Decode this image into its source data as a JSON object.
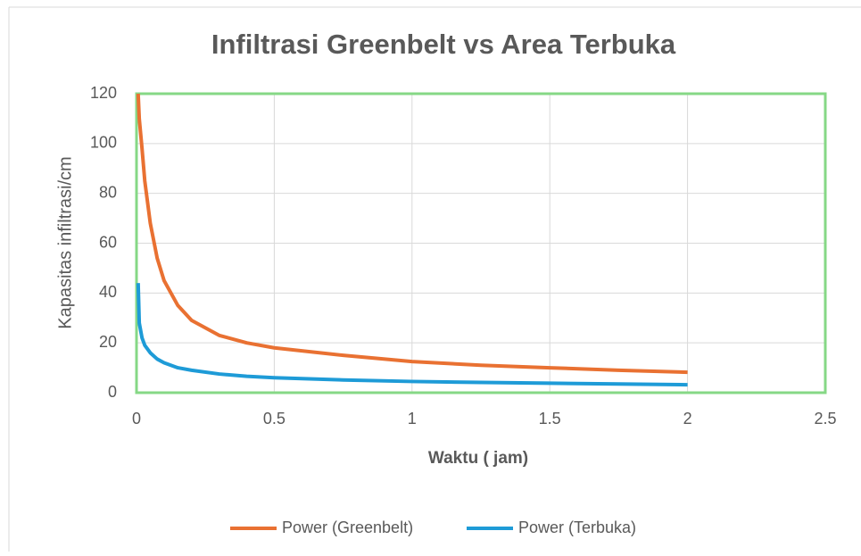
{
  "chart_data": {
    "type": "line",
    "title": "Infiltrasi Greenbelt vs Area Terbuka",
    "xlabel": "Waktu ( jam)",
    "ylabel": "Kapasitas infiltrasi/cm",
    "x": [
      0.006,
      0.01,
      0.02,
      0.03,
      0.05,
      0.075,
      0.1,
      0.15,
      0.2,
      0.3,
      0.4,
      0.5,
      0.75,
      1,
      1.25,
      1.5,
      1.75,
      2
    ],
    "series": [
      {
        "name": "Power (Greenbelt)",
        "color": "#e97132",
        "values": [
          120,
          110,
          98,
          85,
          68,
          54,
          45,
          35,
          29,
          23,
          20,
          18,
          15,
          12.5,
          11,
          10,
          9,
          8.2
        ]
      },
      {
        "name": "Power (Terbuka)",
        "color": "#1e9bd7",
        "values": [
          44,
          28,
          22,
          19,
          16,
          13.5,
          12,
          10,
          9,
          7.5,
          6.6,
          6,
          5.1,
          4.5,
          4.1,
          3.8,
          3.5,
          3.2
        ]
      }
    ],
    "xlim": [
      0,
      2.5
    ],
    "xticks": [
      0,
      0.5,
      1,
      1.5,
      2,
      2.5
    ],
    "ylim": [
      0,
      120
    ],
    "yticks": [
      0,
      20,
      40,
      60,
      80,
      100,
      120
    ],
    "grid": true,
    "legend": "bottom"
  }
}
